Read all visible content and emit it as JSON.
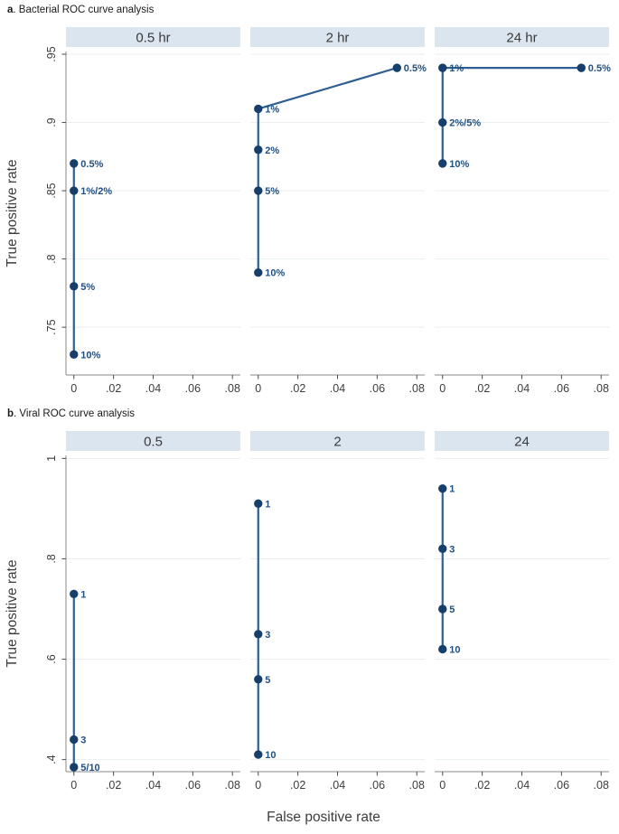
{
  "style": {
    "header_bg": "#dbe5ef",
    "line_color": "#2f5f92",
    "dot_color": "#16406b",
    "point_label_color": "#215081",
    "grid_color": "#e9eff1",
    "axis_color": "#8a8a8a",
    "tick_color": "#4a4a4a"
  },
  "chart_data": [
    {
      "type": "line",
      "panel_letter": "a",
      "title_rest": ". Bacterial ROC curve analysis",
      "ylabel": "True positive rate",
      "xlabel": "",
      "grid": true,
      "legend": "none",
      "xlim": [
        -0.004,
        0.084
      ],
      "x_ticks": [
        0,
        0.02,
        0.04,
        0.06,
        0.08
      ],
      "x_tick_labels": [
        "0",
        ".02",
        ".04",
        ".06",
        ".08"
      ],
      "ylim": [
        0.715,
        0.952
      ],
      "y_ticks": [
        0.75,
        0.8,
        0.85,
        0.9,
        0.95
      ],
      "y_tick_labels": [
        ".75",
        ".8",
        ".85",
        ".9",
        ".95"
      ],
      "subplots": [
        {
          "header": "0.5 hr",
          "points": [
            {
              "x": 0,
              "y": 0.87,
              "label": "0.5%"
            },
            {
              "x": 0,
              "y": 0.85,
              "label": "1%/2%"
            },
            {
              "x": 0,
              "y": 0.78,
              "label": "5%"
            },
            {
              "x": 0,
              "y": 0.73,
              "label": "10%"
            }
          ]
        },
        {
          "header": "2 hr",
          "points": [
            {
              "x": 0.07,
              "y": 0.94,
              "label": "0.5%"
            },
            {
              "x": 0,
              "y": 0.91,
              "label": "1%"
            },
            {
              "x": 0,
              "y": 0.88,
              "label": "2%"
            },
            {
              "x": 0,
              "y": 0.85,
              "label": "5%"
            },
            {
              "x": 0,
              "y": 0.79,
              "label": "10%"
            }
          ]
        },
        {
          "header": "24 hr",
          "points": [
            {
              "x": 0.07,
              "y": 0.94,
              "label": "0.5%"
            },
            {
              "x": 0,
              "y": 0.94,
              "label": "1%"
            },
            {
              "x": 0,
              "y": 0.9,
              "label": "2%/5%"
            },
            {
              "x": 0,
              "y": 0.87,
              "label": "10%"
            }
          ]
        }
      ]
    },
    {
      "type": "line",
      "panel_letter": "b",
      "title_rest": ". Viral ROC curve analysis",
      "ylabel": "True positive rate",
      "xlabel": "False positive rate",
      "grid": true,
      "legend": "none",
      "xlim": [
        -0.004,
        0.084
      ],
      "x_ticks": [
        0,
        0.02,
        0.04,
        0.06,
        0.08
      ],
      "x_tick_labels": [
        "0",
        ".02",
        ".04",
        ".06",
        ".08"
      ],
      "ylim": [
        0.376,
        1.006
      ],
      "y_ticks": [
        0.4,
        0.6,
        0.8,
        1.0
      ],
      "y_tick_labels": [
        ".4",
        ".6",
        ".8",
        "1"
      ],
      "subplots": [
        {
          "header": "0.5",
          "points": [
            {
              "x": 0,
              "y": 0.73,
              "label": "1"
            },
            {
              "x": 0,
              "y": 0.44,
              "label": "3"
            },
            {
              "x": 0,
              "y": 0.385,
              "label": "5/10"
            }
          ]
        },
        {
          "header": "2",
          "points": [
            {
              "x": 0,
              "y": 0.91,
              "label": "1"
            },
            {
              "x": 0,
              "y": 0.65,
              "label": "3"
            },
            {
              "x": 0,
              "y": 0.56,
              "label": "5"
            },
            {
              "x": 0,
              "y": 0.41,
              "label": "10"
            }
          ]
        },
        {
          "header": "24",
          "points": [
            {
              "x": 0,
              "y": 0.94,
              "label": "1"
            },
            {
              "x": 0,
              "y": 0.82,
              "label": "3"
            },
            {
              "x": 0,
              "y": 0.7,
              "label": "5"
            },
            {
              "x": 0,
              "y": 0.62,
              "label": "10"
            }
          ]
        }
      ]
    }
  ]
}
